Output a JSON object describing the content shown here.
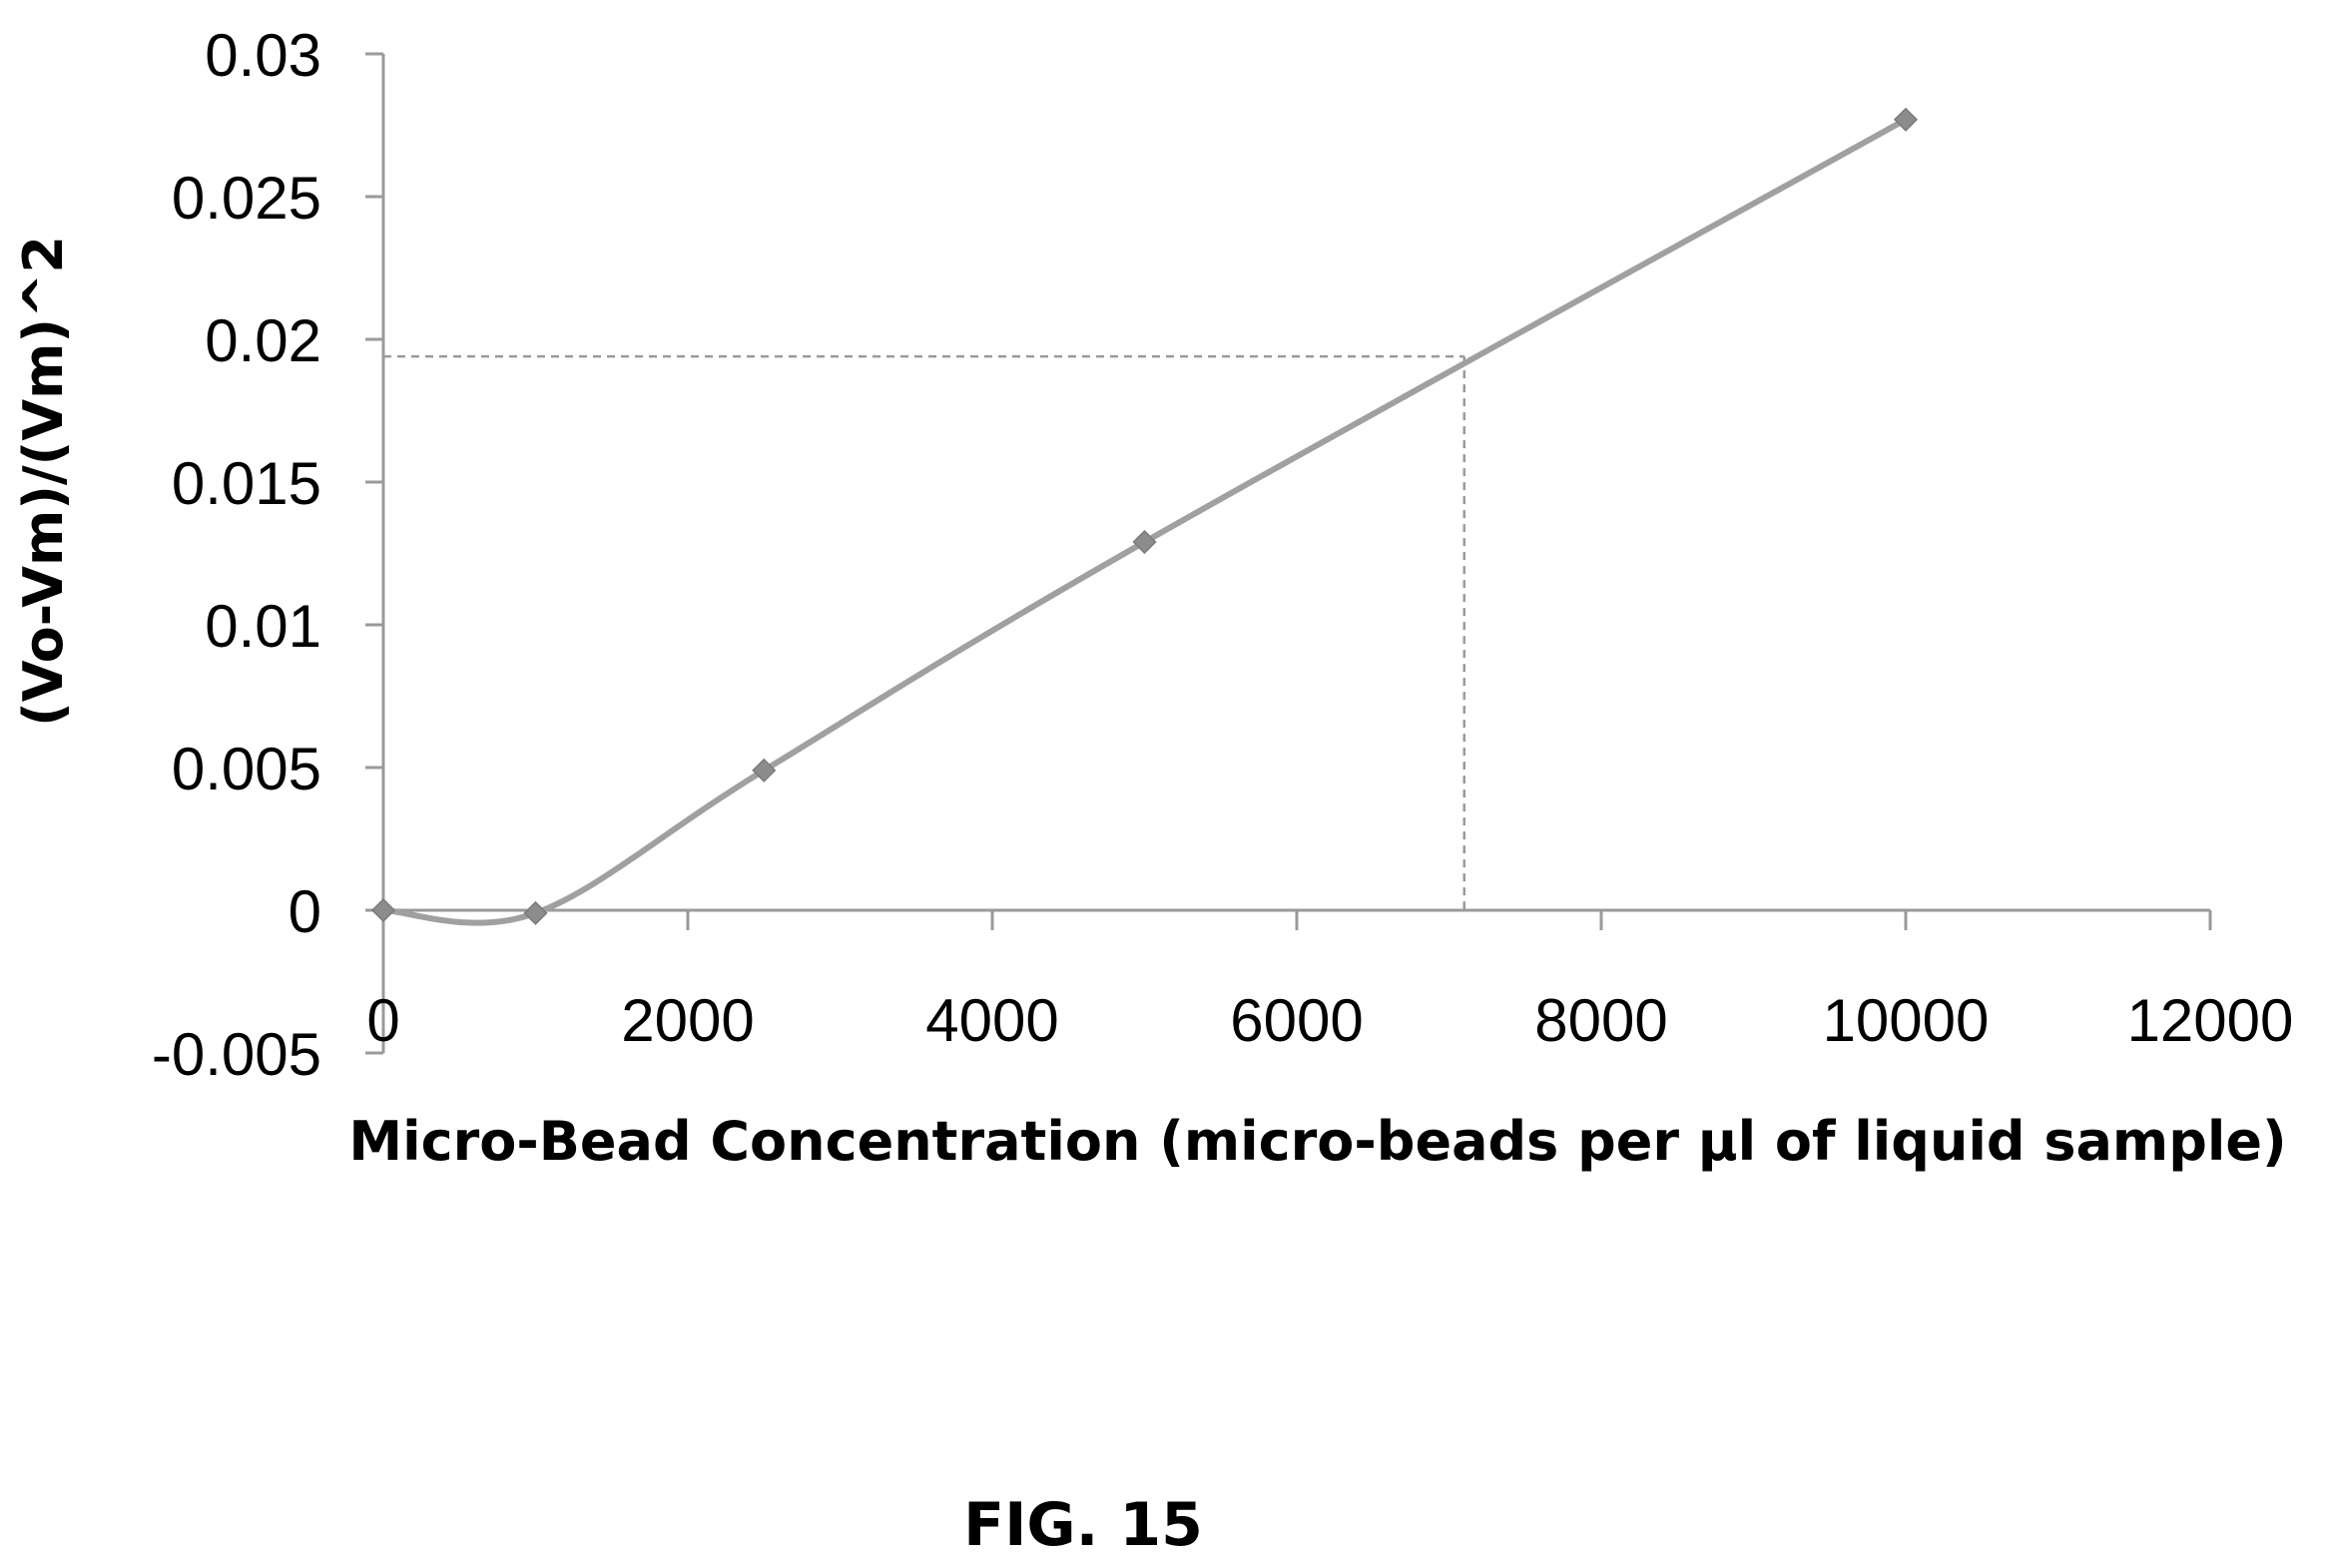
{
  "figure_label": "FIG. 15",
  "chart_data": {
    "type": "line",
    "xlabel": "Micro-Bead Concentration (micro-beads per µl of liquid sample)",
    "ylabel": "(Vo-Vm)/(Vm)^2",
    "xlim": [
      0,
      12000
    ],
    "ylim": [
      -0.005,
      0.03
    ],
    "x_ticks": [
      0,
      2000,
      4000,
      6000,
      8000,
      10000,
      12000
    ],
    "y_ticks": [
      -0.005,
      0,
      0.005,
      0.01,
      0.015,
      0.02,
      0.025,
      0.03
    ],
    "x_tick_labels": [
      "0",
      "2000",
      "4000",
      "6000",
      "8000",
      "10000",
      "12000"
    ],
    "y_tick_labels": [
      "-0.005",
      "0",
      "0.005",
      "0.01",
      "0.015",
      "0.02",
      "0.025",
      "0.03"
    ],
    "grid": false,
    "series": [
      {
        "x": [
          0,
          1000,
          2500,
          5000,
          10000
        ],
        "y": [
          0,
          -0.0001,
          0.0049,
          0.0129,
          0.0277
        ],
        "marker": "diamond",
        "smooth": true
      }
    ],
    "reference": {
      "x": 7100,
      "y": 0.0194,
      "style": "dashed"
    },
    "colors": {
      "line": "#a0a0a0",
      "marker": "#8c8c8c",
      "reference": "#9a9a9a",
      "axis": "#9a9a9a"
    }
  }
}
